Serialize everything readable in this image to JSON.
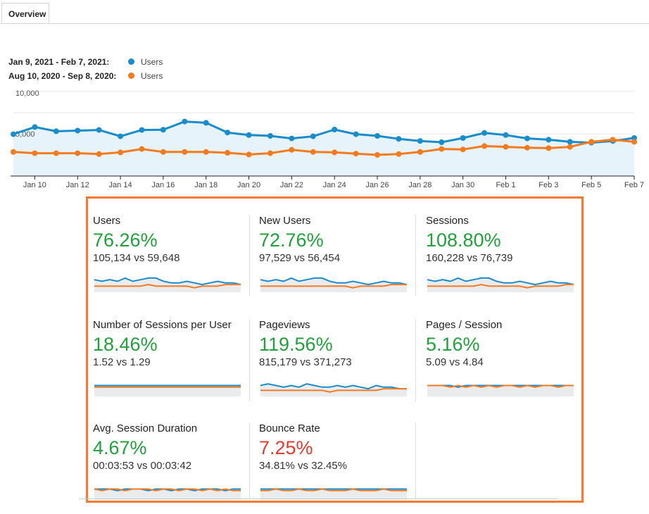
{
  "tabs": [
    {
      "label": "Overview"
    }
  ],
  "legend": [
    {
      "range": "Jan 9, 2021 - Feb 7, 2021:",
      "series": "Users",
      "color": "#1a8ccc"
    },
    {
      "range": "Aug 10, 2020 - Sep 8, 2020:",
      "series": "Users",
      "color": "#f37b1f"
    }
  ],
  "colors": {
    "current": "#1a8ccc",
    "previous": "#f37b1f",
    "positive": "#21a03b",
    "negative": "#e03c2f",
    "highlight_frame": "#f37b2f"
  },
  "chart_data": {
    "type": "line",
    "y_ticks": [
      "10,000",
      "5,000"
    ],
    "ylim": [
      0,
      10000
    ],
    "x_tick_labels": [
      "Jan 10",
      "Jan 12",
      "Jan 14",
      "Jan 16",
      "Jan 18",
      "Jan 20",
      "Jan 22",
      "Jan 24",
      "Jan 26",
      "Jan 28",
      "Jan 30",
      "Feb 1",
      "Feb 3",
      "Feb 5",
      "Feb 7"
    ],
    "grid": true,
    "series": [
      {
        "name": "Users",
        "period": "Jan 9, 2021 - Feb 7, 2021",
        "color": "#1a8ccc",
        "values": [
          4950,
          5800,
          5300,
          5380,
          5450,
          4700,
          5450,
          5480,
          6450,
          6300,
          5150,
          4850,
          4750,
          4450,
          4700,
          5500,
          4950,
          4750,
          4400,
          4150,
          4000,
          4500,
          5100,
          4850,
          4450,
          4300,
          4050,
          3950,
          4150,
          4500
        ]
      },
      {
        "name": "Users",
        "period": "Aug 10, 2020 - Sep 8, 2020",
        "color": "#f37b1f",
        "values": [
          2850,
          2700,
          2700,
          2700,
          2600,
          2800,
          3200,
          2850,
          2850,
          2850,
          2750,
          2550,
          2700,
          3100,
          2850,
          2800,
          2650,
          2500,
          2600,
          2850,
          3200,
          3150,
          3550,
          3450,
          3350,
          3300,
          3450,
          4050,
          4300,
          4050
        ]
      }
    ]
  },
  "tiles": [
    {
      "name": "Users",
      "pct": "76.26%",
      "cmp": "105,134 vs 59,648",
      "direction": "up",
      "spark": {
        "a": [
          6,
          5,
          6,
          5,
          7,
          5,
          6,
          7,
          7,
          5,
          4,
          4,
          5,
          4,
          3,
          4,
          5,
          4,
          4,
          3
        ],
        "b": [
          2,
          2,
          2,
          2,
          2,
          2,
          2,
          3,
          2,
          2,
          2,
          2,
          2,
          1,
          2,
          2,
          2,
          3,
          3,
          3
        ]
      }
    },
    {
      "name": "New Users",
      "pct": "72.76%",
      "cmp": "97,529 vs 56,454",
      "direction": "up",
      "spark": {
        "a": [
          6,
          5,
          6,
          5,
          7,
          5,
          6,
          7,
          7,
          5,
          4,
          4,
          5,
          4,
          3,
          4,
          5,
          4,
          4,
          3
        ],
        "b": [
          2,
          2,
          2,
          2,
          2,
          2,
          2,
          2,
          2,
          2,
          2,
          2,
          1,
          2,
          2,
          2,
          2,
          3,
          3,
          3
        ]
      }
    },
    {
      "name": "Sessions",
      "pct": "108.80%",
      "cmp": "160,228 vs 76,739",
      "direction": "up",
      "spark": {
        "a": [
          6,
          5,
          6,
          5,
          7,
          5,
          6,
          7,
          7,
          5,
          4,
          4,
          5,
          4,
          3,
          4,
          5,
          4,
          4,
          3
        ],
        "b": [
          2,
          2,
          2,
          2,
          2,
          2,
          2,
          3,
          2,
          2,
          2,
          2,
          2,
          1,
          2,
          2,
          2,
          2,
          3,
          3
        ]
      }
    },
    {
      "name": "Number of Sessions per User",
      "pct": "18.46%",
      "cmp": "1.52 vs 1.29",
      "direction": "up",
      "spark": {
        "a": [
          5,
          5,
          5,
          5,
          5,
          5,
          5,
          5,
          5,
          5,
          5,
          5,
          5,
          5,
          5,
          5,
          5,
          5,
          5,
          5
        ],
        "b": [
          4,
          4,
          4,
          4,
          4,
          4,
          4,
          4,
          4,
          4,
          4,
          4,
          4,
          4,
          4,
          4,
          4,
          4,
          4,
          4
        ]
      }
    },
    {
      "name": "Pageviews",
      "pct": "119.56%",
      "cmp": "815,179 vs 371,273",
      "direction": "up",
      "spark": {
        "a": [
          5,
          6,
          5,
          4,
          5,
          4,
          6,
          5,
          4,
          4,
          5,
          4,
          5,
          4,
          3,
          5,
          4,
          4,
          3,
          3
        ],
        "b": [
          2,
          2,
          2,
          2,
          2,
          2,
          2,
          2,
          2,
          1,
          2,
          2,
          2,
          2,
          2,
          2,
          3,
          3,
          3,
          3
        ]
      }
    },
    {
      "name": "Pages / Session",
      "pct": "5.16%",
      "cmp": "5.09 vs 4.84",
      "direction": "up",
      "spark": {
        "a": [
          5,
          5,
          5,
          5,
          4,
          5,
          5,
          5,
          5,
          5,
          5,
          5,
          5,
          5,
          5,
          5,
          5,
          5,
          5,
          5
        ],
        "b": [
          5,
          5,
          5,
          4,
          5,
          4,
          5,
          4,
          5,
          4,
          5,
          5,
          4,
          5,
          4,
          5,
          5,
          4,
          5,
          5
        ]
      }
    },
    {
      "name": "Avg. Session Duration",
      "pct": "4.67%",
      "cmp": "00:03:53 vs 00:03:42",
      "direction": "up",
      "spark": {
        "a": [
          5,
          5,
          5,
          4,
          5,
          5,
          5,
          4,
          5,
          5,
          4,
          5,
          5,
          4,
          5,
          5,
          5,
          4,
          5,
          5
        ],
        "b": [
          5,
          4,
          5,
          5,
          4,
          5,
          5,
          5,
          4,
          5,
          5,
          4,
          5,
          5,
          4,
          5,
          4,
          5,
          4,
          4
        ]
      }
    },
    {
      "name": "Bounce Rate",
      "pct": "7.25%",
      "cmp": "34.81% vs 32.45%",
      "direction": "down",
      "spark": {
        "a": [
          5,
          5,
          5,
          5,
          5,
          5,
          5,
          5,
          5,
          5,
          5,
          5,
          5,
          5,
          5,
          5,
          5,
          5,
          5,
          5
        ],
        "b": [
          4,
          4,
          5,
          4,
          4,
          5,
          4,
          4,
          5,
          4,
          4,
          4,
          5,
          4,
          4,
          4,
          5,
          4,
          4,
          4
        ]
      }
    }
  ]
}
